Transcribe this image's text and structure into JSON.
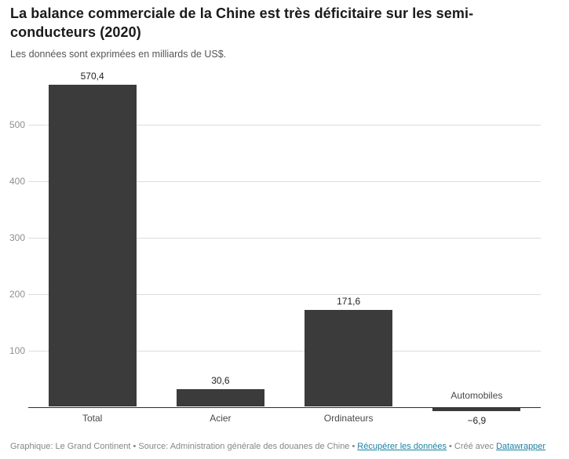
{
  "chart_data": {
    "type": "bar",
    "title": "La balance commerciale de la Chine est très déficitaire sur les semi-conducteurs (2020)",
    "subtitle": "Les données sont exprimées en milliards de US$.",
    "categories": [
      "Total",
      "Acier",
      "Ordinateurs",
      "Automobiles"
    ],
    "values": [
      570.4,
      30.6,
      171.6,
      -6.9
    ],
    "value_labels": [
      "570,4",
      "30,6",
      "171,6",
      "−6,9"
    ],
    "yticks": [
      100,
      200,
      300,
      400,
      500
    ],
    "ylim": [
      -20,
      590
    ],
    "grid": true,
    "legend": "none",
    "unit": "milliards de US$"
  },
  "colors": {
    "bar": "#3b3b3b",
    "gridline": "#dcdcdc",
    "axis": "#2e2e2e",
    "link": "#1d81a2",
    "title": "#1a1a1a"
  },
  "footer": {
    "credit": "Graphique: Le Grand Continent",
    "source": "Source: Administration générale des douanes de Chine",
    "data_link": "Récupérer les données",
    "created_with": "Créé avec",
    "tool_link": "Datawrapper",
    "separator": "•"
  }
}
